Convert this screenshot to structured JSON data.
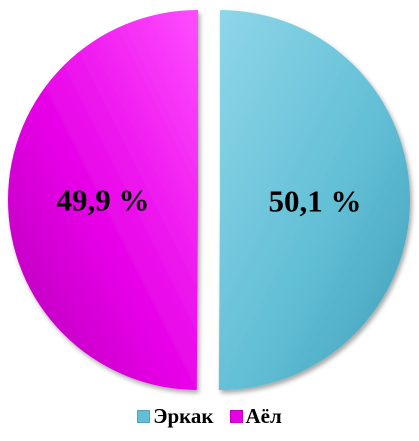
{
  "chart_data": {
    "type": "pie",
    "title": "",
    "series": [
      {
        "name": "",
        "categories": [
          "Эркак",
          "Аёл"
        ],
        "values": [
          50.1,
          49.9
        ],
        "labels": [
          "50,1 %",
          "49,9 %"
        ]
      }
    ],
    "legend": {
      "position": "bottom",
      "entries": [
        "Эркак",
        "Аёл"
      ]
    },
    "style": "exploded",
    "colors": [
      "#62bfd6",
      "#e600e6"
    ]
  }
}
